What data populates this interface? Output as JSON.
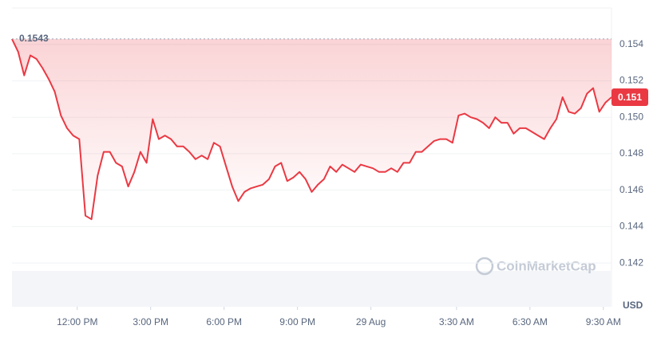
{
  "chart_data": {
    "type": "line",
    "color": "#ea3943",
    "values": [
      0.1543,
      0.1536,
      0.1523,
      0.1534,
      0.1532,
      0.1527,
      0.1521,
      0.1514,
      0.1501,
      0.1494,
      0.149,
      0.1488,
      0.1446,
      0.1444,
      0.1468,
      0.1481,
      0.1481,
      0.1475,
      0.1473,
      0.1462,
      0.147,
      0.1481,
      0.1475,
      0.1499,
      0.1488,
      0.149,
      0.1488,
      0.1484,
      0.1484,
      0.1481,
      0.1477,
      0.1479,
      0.1477,
      0.1486,
      0.1484,
      0.1473,
      0.1462,
      0.1454,
      0.1459,
      0.1461,
      0.1462,
      0.1463,
      0.1466,
      0.1473,
      0.1475,
      0.1465,
      0.1467,
      0.147,
      0.1466,
      0.1459,
      0.1463,
      0.1466,
      0.1473,
      0.147,
      0.1474,
      0.1472,
      0.147,
      0.1474,
      0.1473,
      0.1472,
      0.147,
      0.147,
      0.1472,
      0.147,
      0.1475,
      0.1475,
      0.1481,
      0.1481,
      0.1484,
      0.1487,
      0.1488,
      0.1488,
      0.1486,
      0.1501,
      0.1502,
      0.15,
      0.1499,
      0.1497,
      0.1494,
      0.15,
      0.1497,
      0.1497,
      0.1491,
      0.1494,
      0.1494,
      0.1492,
      0.149,
      0.1488,
      0.1494,
      0.1499,
      0.1511,
      0.1503,
      0.1502,
      0.1505,
      0.1513,
      0.1516,
      0.1503,
      0.1508,
      0.1511
    ],
    "xlim": [
      0,
      98
    ],
    "xticks": [
      {
        "value": 10.67,
        "label": "12:00 PM"
      },
      {
        "value": 22.67,
        "label": "3:00 PM"
      },
      {
        "value": 34.67,
        "label": "6:00 PM"
      },
      {
        "value": 46.67,
        "label": "9:00 PM"
      },
      {
        "value": 58.67,
        "label": "29 Aug"
      },
      {
        "value": 72.67,
        "label": "3:30 AM"
      },
      {
        "value": 84.67,
        "label": "6:30 AM"
      },
      {
        "value": 96.67,
        "label": "9:30 AM"
      }
    ],
    "ylim": [
      0.1396,
      0.156
    ],
    "yticks": [
      0.142,
      0.144,
      0.146,
      0.148,
      {
        "value": 0.15,
        "label": "0.150"
      },
      0.152,
      0.154
    ],
    "grid": true,
    "reference": {
      "value": 0.1543,
      "label": "0.1543"
    },
    "current": {
      "value": 0.1511,
      "label": "0.151"
    },
    "watermark": "CoinMarketCap",
    "currency": "USD"
  }
}
